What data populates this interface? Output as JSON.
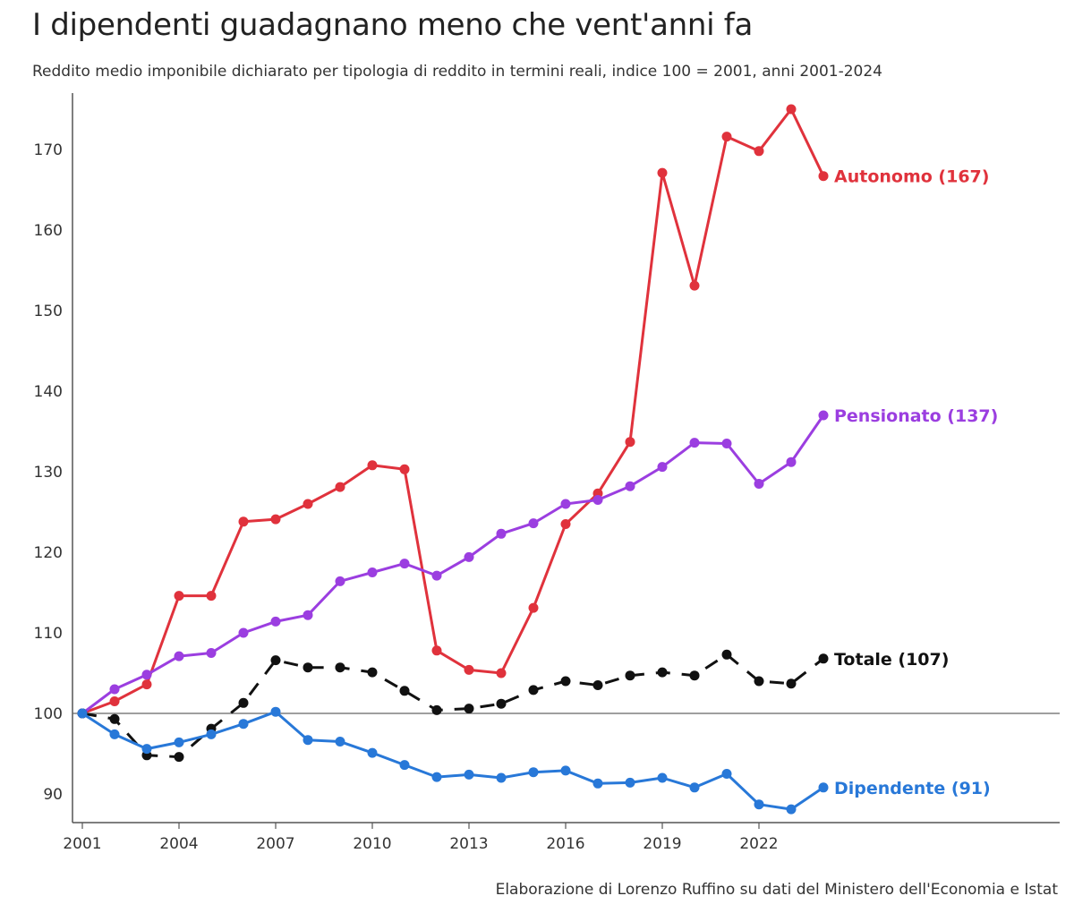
{
  "title": "I dipendenti guadagnano meno che vent'anni fa",
  "subtitle": "Reddito medio imponibile dichiarato per tipologia di reddito in termini reali, indice 100 = 2001, anni 2001-2024",
  "source": "Elaborazione di Lorenzo Ruffino su dati del Ministero dell'Economia e Istat",
  "chart_data": {
    "type": "line",
    "title": "I dipendenti guadagnano meno che vent'anni fa",
    "subtitle": "Reddito medio imponibile dichiarato per tipologia di reddito in termini reali, indice 100 = 2001, anni 2001-2024",
    "x": [
      2001,
      2002,
      2003,
      2004,
      2005,
      2006,
      2007,
      2008,
      2009,
      2010,
      2011,
      2012,
      2013,
      2014,
      2015,
      2016,
      2017,
      2018,
      2019,
      2020,
      2021,
      2022,
      2023,
      2024
    ],
    "xticks": [
      2001,
      2004,
      2007,
      2010,
      2013,
      2016,
      2019,
      2022
    ],
    "xtick_labels": [
      "2001",
      "2004",
      "2007",
      "2010",
      "2013",
      "2016",
      "2019",
      "2022"
    ],
    "yticks": [
      90,
      100,
      110,
      120,
      130,
      140,
      150,
      160,
      170
    ],
    "ytick_labels": [
      "90",
      "100",
      "110",
      "120",
      "130",
      "140",
      "150",
      "160",
      "170"
    ],
    "xlim": [
      2001,
      2025
    ],
    "ylim": [
      86.5,
      177
    ],
    "reference_line": 100,
    "grid": false,
    "series": [
      {
        "name": "Autonomo",
        "label": "Autonomo (167)",
        "color": "#e0323c",
        "dashed": false,
        "values": [
          100,
          101.5,
          103.6,
          114.6,
          114.6,
          123.8,
          124.1,
          126,
          128.1,
          130.8,
          130.3,
          107.8,
          105.4,
          105,
          113.1,
          123.5,
          127.3,
          133.7,
          167.1,
          153.1,
          171.6,
          169.8,
          175,
          166.7
        ]
      },
      {
        "name": "Pensionato",
        "label": "Pensionato (137)",
        "color": "#9b3ee0",
        "dashed": false,
        "values": [
          100,
          103,
          104.8,
          107.1,
          107.5,
          110,
          111.4,
          112.2,
          116.4,
          117.5,
          118.6,
          117.1,
          119.4,
          122.3,
          123.6,
          126,
          126.5,
          128.2,
          130.6,
          133.6,
          133.5,
          128.5,
          131.2,
          137
        ]
      },
      {
        "name": "Totale",
        "label": "Totale (107)",
        "color": "#111111",
        "dashed": true,
        "values": [
          100,
          99.3,
          94.8,
          94.6,
          98.1,
          101.3,
          106.6,
          105.7,
          105.7,
          105.1,
          102.8,
          100.4,
          100.6,
          101.2,
          102.9,
          104,
          103.5,
          104.7,
          105.1,
          104.7,
          107.3,
          104,
          103.7,
          106.8
        ]
      },
      {
        "name": "Dipendente",
        "label": "Dipendente (91)",
        "color": "#2878d8",
        "dashed": false,
        "values": [
          100,
          97.4,
          95.6,
          96.4,
          97.4,
          98.7,
          100.2,
          96.7,
          96.5,
          95.1,
          93.6,
          92.1,
          92.4,
          92,
          92.7,
          92.9,
          91.3,
          91.4,
          92,
          90.8,
          92.5,
          88.7,
          88.1,
          90.8
        ]
      }
    ]
  }
}
